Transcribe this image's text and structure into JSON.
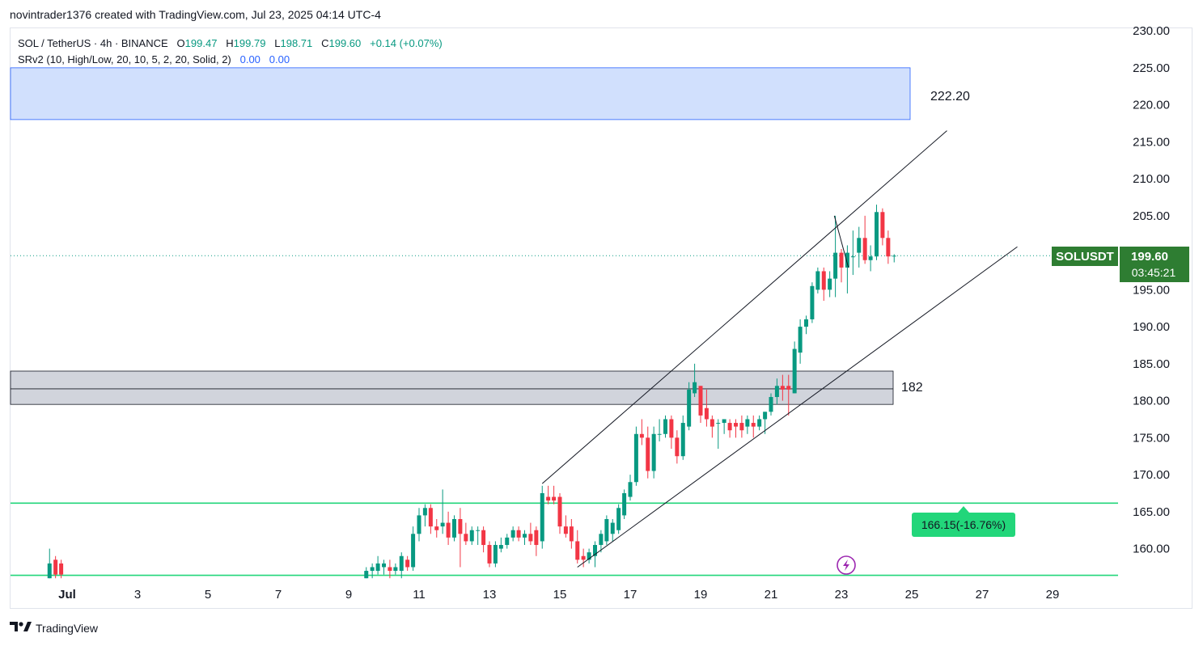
{
  "header": {
    "text": "novintrader1376 created with TradingView.com, Jul 23, 2025 04:14 UTC-4"
  },
  "legend": {
    "symbol": "SOL / TetherUS · 4h · BINANCE",
    "open_label": "O",
    "open": "199.47",
    "high_label": "H",
    "high": "199.79",
    "low_label": "L",
    "low": "198.71",
    "close_label": "C",
    "close": "199.60",
    "change": "+0.14 (+0.07%)",
    "indicator": "SRv2 (10, High/Low, 20, 10, 5, 2, 20, Solid, 2)",
    "ind_val1": "0.00",
    "ind_val2": "0.00"
  },
  "price_tag": {
    "symbol": "SOLUSDT",
    "price": "199.60",
    "countdown": "03:45:21"
  },
  "footer": {
    "brand": "TradingView"
  },
  "colors": {
    "up": "#089981",
    "down": "#f23645",
    "accent": "#2e7d32",
    "zone_blue": "#d1e0fd",
    "zone_gray": "#d1d4dc",
    "green_line": "#22d67a"
  },
  "chart_data": {
    "type": "candlestick",
    "timeframe": "4h",
    "ylim": [
      155.0,
      231.0
    ],
    "y_ticks": [
      "230.00",
      "225.00",
      "220.00",
      "215.00",
      "210.00",
      "205.00",
      "200.00",
      "195.00",
      "190.00",
      "185.00",
      "180.00",
      "175.00",
      "170.00",
      "165.00",
      "160.00"
    ],
    "x_ticks": [
      {
        "label": "Jul",
        "day": 1
      },
      {
        "label": "3",
        "day": 3
      },
      {
        "label": "5",
        "day": 5
      },
      {
        "label": "7",
        "day": 7
      },
      {
        "label": "9",
        "day": 9
      },
      {
        "label": "11",
        "day": 11
      },
      {
        "label": "13",
        "day": 13
      },
      {
        "label": "15",
        "day": 15
      },
      {
        "label": "17",
        "day": 17
      },
      {
        "label": "19",
        "day": 19
      },
      {
        "label": "21",
        "day": 21
      },
      {
        "label": "23",
        "day": 23
      },
      {
        "label": "25",
        "day": 25
      },
      {
        "label": "27",
        "day": 27
      },
      {
        "label": "29",
        "day": 29
      }
    ],
    "candles": [
      {
        "t": 0.5,
        "o": 156,
        "h": 160,
        "l": 156,
        "c": 158
      },
      {
        "t": 0.67,
        "o": 158.5,
        "h": 159,
        "l": 156,
        "c": 156.5
      },
      {
        "t": 0.83,
        "o": 158,
        "h": 158.5,
        "l": 156,
        "c": 156.5
      },
      {
        "t": 9.5,
        "o": 156,
        "h": 157.5,
        "l": 156,
        "c": 157
      },
      {
        "t": 9.67,
        "o": 157,
        "h": 158,
        "l": 156,
        "c": 157.5
      },
      {
        "t": 9.83,
        "o": 157,
        "h": 159,
        "l": 156.5,
        "c": 158
      },
      {
        "t": 10.0,
        "o": 157.5,
        "h": 158.5,
        "l": 156.5,
        "c": 158
      },
      {
        "t": 10.17,
        "o": 157.5,
        "h": 158.5,
        "l": 156,
        "c": 157
      },
      {
        "t": 10.33,
        "o": 157,
        "h": 158,
        "l": 156.5,
        "c": 157.5
      },
      {
        "t": 10.5,
        "o": 157,
        "h": 159.5,
        "l": 156,
        "c": 159
      },
      {
        "t": 10.67,
        "o": 158.5,
        "h": 159,
        "l": 157,
        "c": 157.5
      },
      {
        "t": 10.83,
        "o": 157.5,
        "h": 163,
        "l": 157,
        "c": 162
      },
      {
        "t": 11.0,
        "o": 162,
        "h": 165.5,
        "l": 161,
        "c": 164.5
      },
      {
        "t": 11.17,
        "o": 164.5,
        "h": 166,
        "l": 163,
        "c": 165.5
      },
      {
        "t": 11.33,
        "o": 165.5,
        "h": 166,
        "l": 162,
        "c": 163
      },
      {
        "t": 11.5,
        "o": 163,
        "h": 164,
        "l": 161.5,
        "c": 162.5
      },
      {
        "t": 11.67,
        "o": 163,
        "h": 168,
        "l": 162,
        "c": 163.5
      },
      {
        "t": 11.83,
        "o": 163.5,
        "h": 165,
        "l": 160.5,
        "c": 161.5
      },
      {
        "t": 12.0,
        "o": 161.5,
        "h": 164.5,
        "l": 161,
        "c": 164
      },
      {
        "t": 12.17,
        "o": 164,
        "h": 165.5,
        "l": 157.5,
        "c": 162
      },
      {
        "t": 12.33,
        "o": 162,
        "h": 163.5,
        "l": 160.5,
        "c": 161
      },
      {
        "t": 12.5,
        "o": 161,
        "h": 163,
        "l": 160.5,
        "c": 162.5
      },
      {
        "t": 12.67,
        "o": 162.5,
        "h": 163,
        "l": 160.5,
        "c": 162.5
      },
      {
        "t": 12.83,
        "o": 162.5,
        "h": 163,
        "l": 159.5,
        "c": 160.5
      },
      {
        "t": 13.0,
        "o": 160.5,
        "h": 161,
        "l": 157.5,
        "c": 158
      },
      {
        "t": 13.17,
        "o": 158,
        "h": 161,
        "l": 157.5,
        "c": 160.5
      },
      {
        "t": 13.33,
        "o": 160,
        "h": 161.5,
        "l": 159.5,
        "c": 160.5
      },
      {
        "t": 13.5,
        "o": 160.5,
        "h": 162,
        "l": 160,
        "c": 161.5
      },
      {
        "t": 13.67,
        "o": 161.5,
        "h": 163,
        "l": 161,
        "c": 162.5
      },
      {
        "t": 13.83,
        "o": 162.5,
        "h": 163,
        "l": 161,
        "c": 161.5
      },
      {
        "t": 14.0,
        "o": 161.5,
        "h": 162.5,
        "l": 160.5,
        "c": 162
      },
      {
        "t": 14.17,
        "o": 162,
        "h": 163.5,
        "l": 160.5,
        "c": 161
      },
      {
        "t": 14.33,
        "o": 162.5,
        "h": 163,
        "l": 159,
        "c": 160.5
      },
      {
        "t": 14.5,
        "o": 161,
        "h": 168.5,
        "l": 160,
        "c": 167.5
      },
      {
        "t": 14.67,
        "o": 167,
        "h": 168.5,
        "l": 166,
        "c": 166.5
      },
      {
        "t": 14.83,
        "o": 167,
        "h": 168.5,
        "l": 166,
        "c": 166.5
      },
      {
        "t": 15.0,
        "o": 167,
        "h": 167.5,
        "l": 162,
        "c": 163
      },
      {
        "t": 15.17,
        "o": 163,
        "h": 164.5,
        "l": 161.5,
        "c": 162
      },
      {
        "t": 15.33,
        "o": 163,
        "h": 164,
        "l": 160,
        "c": 161
      },
      {
        "t": 15.5,
        "o": 161,
        "h": 162.5,
        "l": 158,
        "c": 158.5
      },
      {
        "t": 15.67,
        "o": 159,
        "h": 160,
        "l": 157.5,
        "c": 158.5
      },
      {
        "t": 15.83,
        "o": 158.5,
        "h": 160,
        "l": 158,
        "c": 159.5
      },
      {
        "t": 16.0,
        "o": 159,
        "h": 161,
        "l": 157.5,
        "c": 160.5
      },
      {
        "t": 16.17,
        "o": 160.5,
        "h": 162.5,
        "l": 159.5,
        "c": 162
      },
      {
        "t": 16.33,
        "o": 161,
        "h": 164.5,
        "l": 160.5,
        "c": 164
      },
      {
        "t": 16.5,
        "o": 162,
        "h": 164,
        "l": 161,
        "c": 163.5
      },
      {
        "t": 16.67,
        "o": 162.5,
        "h": 166,
        "l": 162,
        "c": 165.5
      },
      {
        "t": 16.83,
        "o": 164.5,
        "h": 168,
        "l": 164,
        "c": 167.5
      },
      {
        "t": 17.0,
        "o": 167,
        "h": 170,
        "l": 166.5,
        "c": 169
      },
      {
        "t": 17.17,
        "o": 169,
        "h": 176.5,
        "l": 168.5,
        "c": 175.5
      },
      {
        "t": 17.33,
        "o": 175.5,
        "h": 177.5,
        "l": 174,
        "c": 175
      },
      {
        "t": 17.5,
        "o": 175,
        "h": 176.5,
        "l": 169.5,
        "c": 170.5
      },
      {
        "t": 17.67,
        "o": 170.5,
        "h": 176.5,
        "l": 169.5,
        "c": 175.5
      },
      {
        "t": 17.83,
        "o": 175.5,
        "h": 177.5,
        "l": 174.5,
        "c": 175.5
      },
      {
        "t": 18.0,
        "o": 175.5,
        "h": 178,
        "l": 175,
        "c": 177.5
      },
      {
        "t": 18.17,
        "o": 177.5,
        "h": 178,
        "l": 173.5,
        "c": 175
      },
      {
        "t": 18.33,
        "o": 175,
        "h": 176,
        "l": 171.5,
        "c": 172.5
      },
      {
        "t": 18.5,
        "o": 172.5,
        "h": 178,
        "l": 172,
        "c": 177
      },
      {
        "t": 18.67,
        "o": 176.5,
        "h": 182.5,
        "l": 176,
        "c": 181.5
      },
      {
        "t": 18.83,
        "o": 181,
        "h": 185,
        "l": 180.5,
        "c": 182.5
      },
      {
        "t": 19.0,
        "o": 182,
        "h": 182,
        "l": 177,
        "c": 178
      },
      {
        "t": 19.17,
        "o": 179,
        "h": 181.5,
        "l": 176.5,
        "c": 177.5
      },
      {
        "t": 19.33,
        "o": 177.5,
        "h": 178,
        "l": 175,
        "c": 176.5
      },
      {
        "t": 19.5,
        "o": 177,
        "h": 177.5,
        "l": 173.5,
        "c": 177
      },
      {
        "t": 19.67,
        "o": 177,
        "h": 177.5,
        "l": 175.5,
        "c": 177.5
      },
      {
        "t": 19.83,
        "o": 177,
        "h": 177.5,
        "l": 175,
        "c": 176
      },
      {
        "t": 20.0,
        "o": 177,
        "h": 177.5,
        "l": 175,
        "c": 176.5
      },
      {
        "t": 20.17,
        "o": 177,
        "h": 178,
        "l": 175,
        "c": 176
      },
      {
        "t": 20.33,
        "o": 176.5,
        "h": 178,
        "l": 175.5,
        "c": 177.5
      },
      {
        "t": 20.5,
        "o": 177,
        "h": 178,
        "l": 175,
        "c": 176.5
      },
      {
        "t": 20.67,
        "o": 176.5,
        "h": 178,
        "l": 176,
        "c": 177.5
      },
      {
        "t": 20.83,
        "o": 177.5,
        "h": 178.5,
        "l": 175.5,
        "c": 178.5
      },
      {
        "t": 21.0,
        "o": 178.5,
        "h": 181,
        "l": 178,
        "c": 180.5
      },
      {
        "t": 21.17,
        "o": 180.5,
        "h": 183,
        "l": 179.5,
        "c": 182
      },
      {
        "t": 21.33,
        "o": 182,
        "h": 183.5,
        "l": 180,
        "c": 181.5
      },
      {
        "t": 21.5,
        "o": 182,
        "h": 183.5,
        "l": 178,
        "c": 181.5
      },
      {
        "t": 21.67,
        "o": 181,
        "h": 188,
        "l": 181,
        "c": 187
      },
      {
        "t": 21.83,
        "o": 186.5,
        "h": 191,
        "l": 185,
        "c": 190
      },
      {
        "t": 22.0,
        "o": 190,
        "h": 191.5,
        "l": 189,
        "c": 191
      },
      {
        "t": 22.17,
        "o": 191,
        "h": 196,
        "l": 190.5,
        "c": 195.5
      },
      {
        "t": 22.33,
        "o": 195,
        "h": 198,
        "l": 194.5,
        "c": 197.5
      },
      {
        "t": 22.5,
        "o": 197.5,
        "h": 198,
        "l": 193.5,
        "c": 195
      },
      {
        "t": 22.67,
        "o": 195,
        "h": 197.5,
        "l": 194,
        "c": 196.5
      },
      {
        "t": 22.83,
        "o": 196.5,
        "h": 205,
        "l": 194,
        "c": 200
      },
      {
        "t": 23.0,
        "o": 200,
        "h": 200.5,
        "l": 196,
        "c": 198
      },
      {
        "t": 23.17,
        "o": 198,
        "h": 201,
        "l": 194.5,
        "c": 200
      },
      {
        "t": 23.33,
        "o": 199.5,
        "h": 203,
        "l": 197,
        "c": 199.5
      },
      {
        "t": 23.5,
        "o": 200,
        "h": 203.5,
        "l": 198,
        "c": 202
      },
      {
        "t": 23.67,
        "o": 202,
        "h": 205,
        "l": 198.5,
        "c": 199
      },
      {
        "t": 23.83,
        "o": 199,
        "h": 201,
        "l": 197.5,
        "c": 199.5
      },
      {
        "t": 24.0,
        "o": 199.5,
        "h": 206.5,
        "l": 199,
        "c": 205.5
      },
      {
        "t": 24.17,
        "o": 205.5,
        "h": 206,
        "l": 201,
        "c": 202
      },
      {
        "t": 24.33,
        "o": 202,
        "h": 203,
        "l": 198.5,
        "c": 199.5
      },
      {
        "t": 24.5,
        "o": 199.5,
        "h": 199.8,
        "l": 198.7,
        "c": 199.6
      }
    ],
    "current_price": 199.6,
    "zones": [
      {
        "name": "resistance-zone",
        "from_day": 0.0,
        "to_day": 25.8,
        "low": 218.0,
        "high": 225.0,
        "label": "222.20"
      },
      {
        "name": "support-zone",
        "from_day": 0.0,
        "to_day": 25.2,
        "low": 179.5,
        "high": 184.0,
        "mid": 181.6,
        "label": "182"
      }
    ],
    "horizontal_lines": [
      166.15,
      156.4
    ],
    "channel": {
      "upper": [
        [
          14.5,
          168.8
        ],
        [
          26.0,
          216.5
        ]
      ],
      "lower": [
        [
          15.5,
          157.5
        ],
        [
          28.0,
          200.8
        ]
      ]
    },
    "small_line": {
      "from": [
        22.8,
        205.0
      ],
      "to": [
        23.2,
        198.0
      ]
    },
    "measure_label": "166.15(-16.76%)"
  }
}
